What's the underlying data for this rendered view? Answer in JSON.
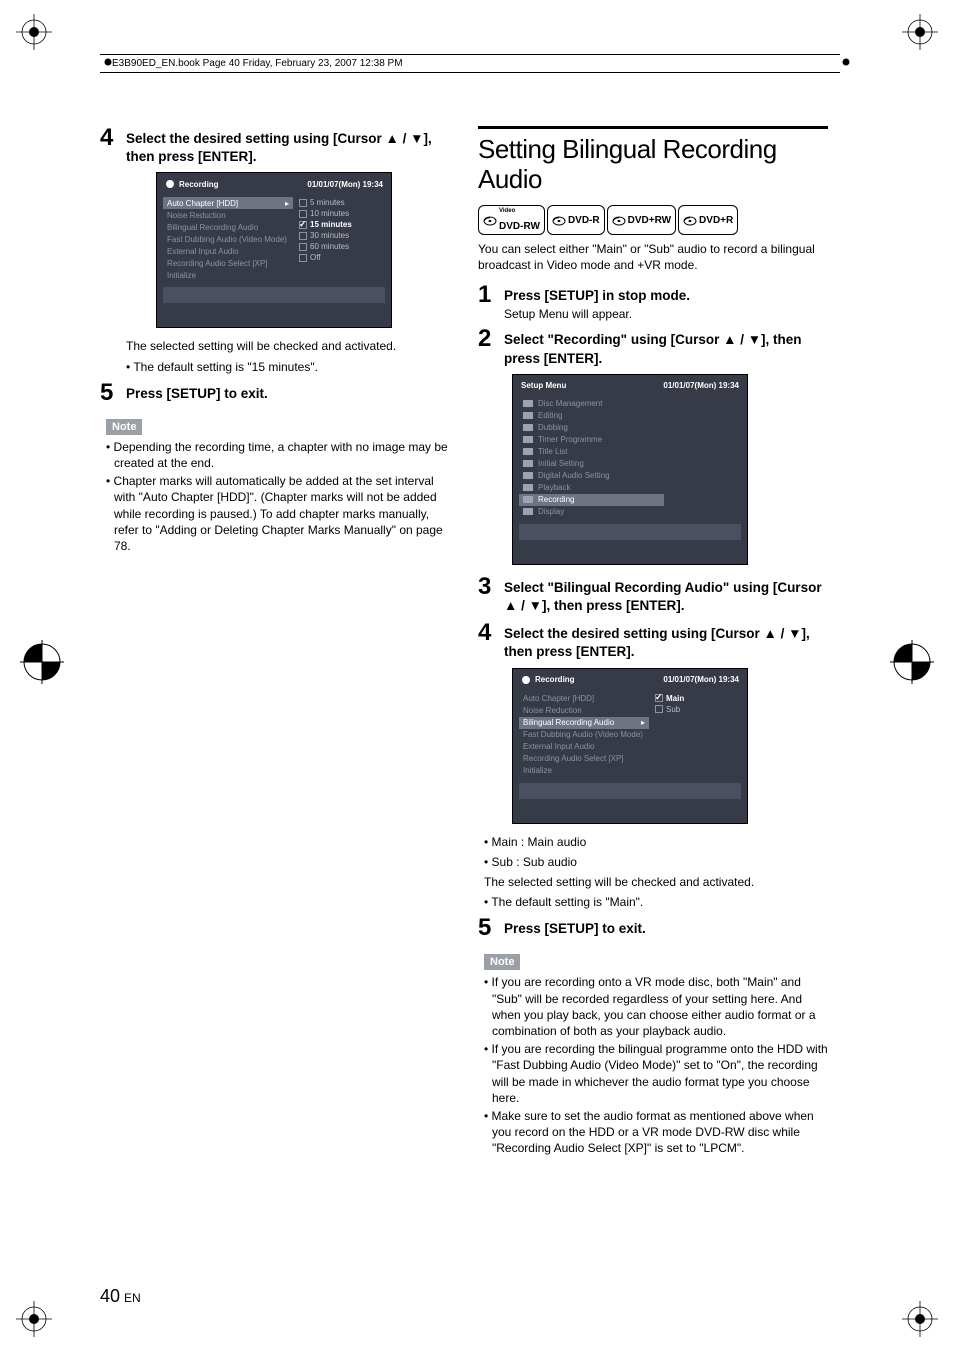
{
  "header": {
    "text": "E3B90ED_EN.book  Page 40  Friday, February 23, 2007  12:38 PM"
  },
  "left": {
    "step4": {
      "title": "Select the desired setting using [Cursor ▲ / ▼], then press [ENTER].",
      "after1": "The selected setting will be checked and activated.",
      "after2": "• The default setting is \"15 minutes\"."
    },
    "screen1": {
      "title": "Recording",
      "dt": "01/01/07(Mon)    19:34",
      "items": [
        "Auto Chapter [HDD]",
        "Noise Reduction",
        "Bilingual Recording Audio",
        "Fast Dubbing Audio (Video Mode)",
        "External Input Audio",
        "Recording Audio Select [XP]",
        "Initialize"
      ],
      "selected": 0,
      "opts": [
        "5   minutes",
        "10 minutes",
        "15 minutes",
        "30 minutes",
        "60 minutes",
        "Off"
      ],
      "opt_selected": 2
    },
    "step5": {
      "title": "Press [SETUP] to exit."
    },
    "note_label": "Note",
    "notes": [
      "Depending the recording time, a chapter with no image may be created at the end.",
      "Chapter marks will automatically be added at the set interval with \"Auto Chapter [HDD]\". (Chapter marks will not be added while recording is paused.) To add chapter marks manually, refer to \"Adding or Deleting Chapter Marks Manually\" on page 78."
    ]
  },
  "right": {
    "h2": "Setting Bilingual Recording Audio",
    "badges": [
      {
        "sup": "Video",
        "label": "DVD-RW"
      },
      {
        "sup": "",
        "label": "DVD-R"
      },
      {
        "sup": "",
        "label": "DVD+RW"
      },
      {
        "sup": "",
        "label": "DVD+R"
      }
    ],
    "intro": "You can select either \"Main\" or \"Sub\" audio to record a bilingual broadcast in Video mode and +VR mode.",
    "step1": {
      "title": "Press [SETUP] in stop mode.",
      "sub": "Setup Menu will appear."
    },
    "step2": {
      "title": "Select \"Recording\" using [Cursor ▲ / ▼], then press [ENTER]."
    },
    "screen2": {
      "title": "Setup Menu",
      "dt": "01/01/07(Mon)    19:34",
      "items": [
        "Disc Management",
        "Editing",
        "Dubbing",
        "Timer Programme",
        "Title List",
        "Initial Setting",
        "Digital Audio Setting",
        "Playback",
        "Recording",
        "Display"
      ],
      "selected": 8
    },
    "step3": {
      "title": "Select \"Bilingual Recording Audio\" using [Cursor ▲ / ▼], then press [ENTER]."
    },
    "step4": {
      "title": "Select the desired setting using [Cursor ▲ / ▼], then press [ENTER]."
    },
    "screen3": {
      "title": "Recording",
      "dt": "01/01/07(Mon)    19:34",
      "items": [
        "Auto Chapter [HDD]",
        "Noise Reduction",
        "Bilingual Recording Audio",
        "Fast Dubbing Audio (Video Mode)",
        "External Input Audio",
        "Recording Audio Select [XP]",
        "Initialize"
      ],
      "selected": 2,
      "opts": [
        "Main",
        "Sub"
      ],
      "opt_selected": 0
    },
    "defs": [
      "• Main : Main audio",
      "• Sub  : Sub audio",
      "The selected setting will be checked and activated.",
      "• The default setting is \"Main\"."
    ],
    "step5": {
      "title": "Press [SETUP] to exit."
    },
    "note_label": "Note",
    "notes": [
      "If you are recording onto a VR mode disc, both \"Main\" and \"Sub\" will be recorded regardless of your setting here. And when you play back, you can choose either audio format or a combination of both as your playback audio.",
      "If you are recording the bilingual programme onto the HDD with \"Fast Dubbing Audio (Video Mode)\" set to \"On\", the recording will be made in whichever the audio format type you choose here.",
      "Make sure to set the audio format as mentioned above when you record on the HDD or a VR mode DVD-RW disc while \"Recording Audio Select [XP]\" is set to \"LPCM\"."
    ]
  },
  "pagenum": "40",
  "pagenum_suffix": "EN",
  "colors": {
    "screen_bg": "#363b47",
    "screen_text_dim": "#8d92a0",
    "screen_sel_bg": "#6d7484",
    "note_bg": "#9aa0a6"
  }
}
